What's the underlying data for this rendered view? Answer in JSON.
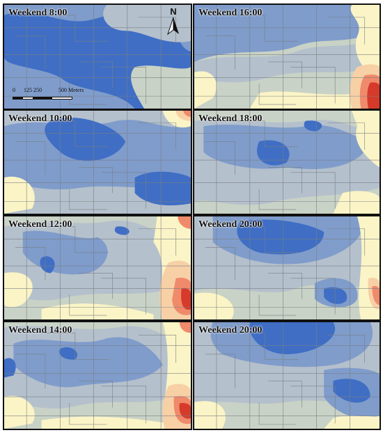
{
  "figure": {
    "panels": [
      {
        "label": "Weekend 8:00"
      },
      {
        "label": "Weekend 16:00"
      },
      {
        "label": "Weekend 10:00"
      },
      {
        "label": "Weekend 18:00"
      },
      {
        "label": "Weekend 12:00"
      },
      {
        "label": "Weekend 20:00"
      },
      {
        "label": "Weekend 14:00"
      },
      {
        "label": "Weekend 20:00"
      }
    ],
    "north_arrow": {
      "letter": "N"
    },
    "scale_bar": {
      "ticks": [
        "0",
        "125",
        "250",
        "500 Meters"
      ]
    },
    "colors": {
      "dark_blue": "#3f6ec4",
      "mid_blue": "#7f9ccb",
      "light_blue_gray": "#b4c0cc",
      "gray_green": "#c9d2c6",
      "cream": "#fbf4c6",
      "light_orange": "#f8d0a6",
      "orange": "#ef8a6b",
      "red": "#d63a2a",
      "roads": "#7a7f85"
    }
  }
}
